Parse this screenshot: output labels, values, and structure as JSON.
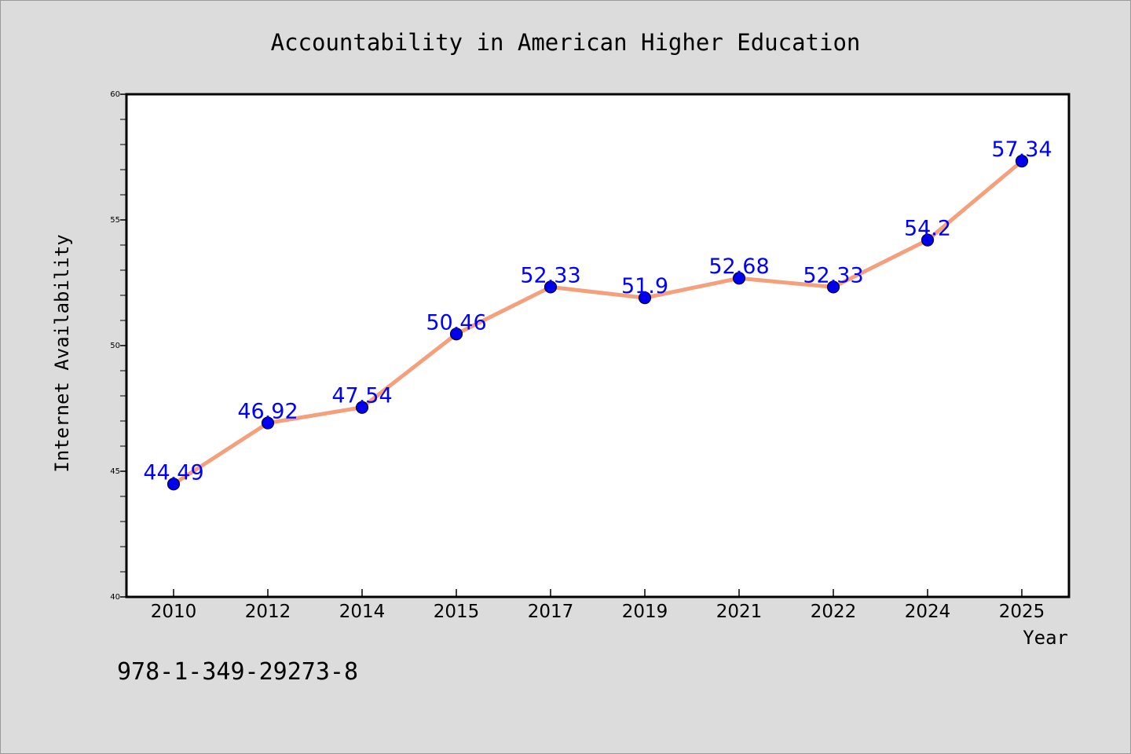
{
  "chart_data": {
    "type": "line",
    "title": "Accountability in American Higher Education",
    "xlabel": "Year",
    "ylabel": "Internet Availability",
    "categories": [
      "2010",
      "2012",
      "2014",
      "2015",
      "2017",
      "2019",
      "2021",
      "2022",
      "2024",
      "2025"
    ],
    "series": [
      {
        "values": [
          44.49,
          46.92,
          47.54,
          50.46,
          52.33,
          51.9,
          52.68,
          52.33,
          54.2,
          57.34
        ]
      }
    ],
    "data_labels": [
      "44.49",
      "46.92",
      "47.54",
      "50.46",
      "52.33",
      "51.9",
      "52.68",
      "52.33",
      "54.2",
      "57.34"
    ],
    "ylim": [
      40,
      60
    ],
    "yticks": [
      40,
      45,
      50,
      55,
      60
    ],
    "grid": false,
    "legend": "none",
    "line_color": "#f4a07c",
    "marker_color": "#0000ee",
    "label_color": "#0000ff"
  },
  "footnote": "978-1-349-29273-8"
}
